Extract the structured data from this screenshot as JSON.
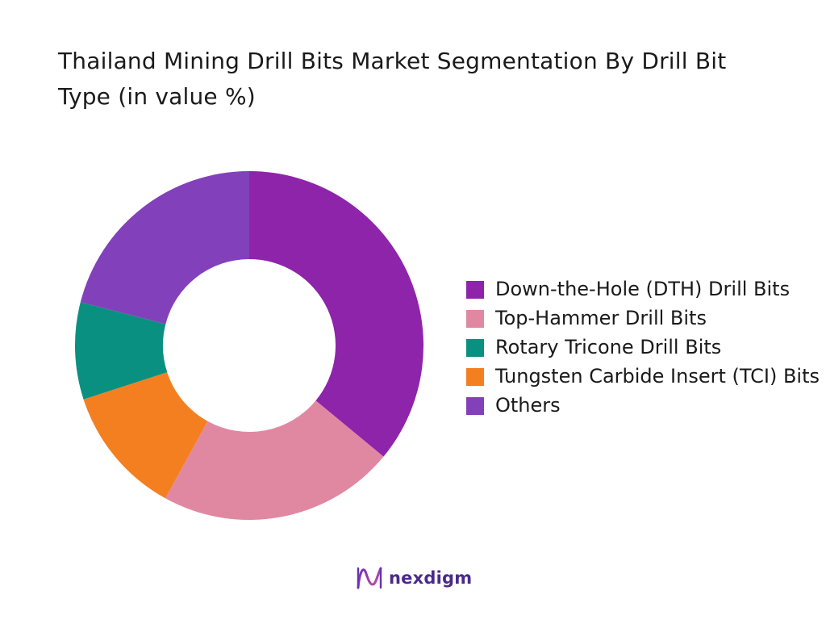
{
  "chart_data": {
    "type": "pie",
    "variant": "donut",
    "title": "Thailand Mining Drill Bits Market Segmentation By Drill Bit Type (in value %)",
    "categories": [
      "Down-the-Hole (DTH) Drill Bits",
      "Top-Hammer Drill Bits",
      "Tungsten Carbide Insert (TCI) Bits",
      "Rotary Tricone Drill Bits",
      "Others"
    ],
    "values": [
      36,
      22,
      12,
      9,
      21
    ],
    "colors": [
      "#8e24aa",
      "#e088a2",
      "#f47f20",
      "#0a9080",
      "#8340bb"
    ],
    "legend": {
      "position": "right",
      "items": [
        {
          "label": "Down-the-Hole (DTH) Drill Bits",
          "color": "#8e24aa"
        },
        {
          "label": "Top-Hammer Drill Bits",
          "color": "#e088a2"
        },
        {
          "label": "Rotary Tricone Drill Bits",
          "color": "#0a9080"
        },
        {
          "label": "Tungsten Carbide Insert (TCI) Bits",
          "color": "#f47f20"
        },
        {
          "label": "Others",
          "color": "#8340bb"
        }
      ]
    }
  },
  "brand": {
    "name": "nexdigm",
    "icon": "nexdigm-logo-icon",
    "color": "#4b2a8c"
  }
}
